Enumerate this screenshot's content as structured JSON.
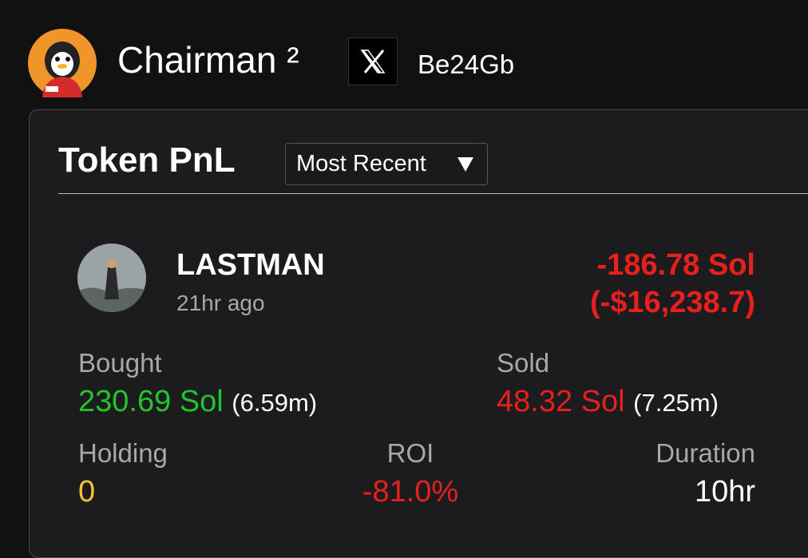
{
  "header": {
    "name": "Chairman ²",
    "handle": "Be24Gb"
  },
  "card": {
    "title": "Token PnL",
    "sort": "Most Recent",
    "token": {
      "name": "LASTMAN",
      "time": "21hr ago",
      "pnl_sol": "-186.78 Sol",
      "pnl_usd": "(-$16,238.7)"
    },
    "bought": {
      "label": "Bought",
      "amount": "230.69 Sol",
      "size": "(6.59m)"
    },
    "sold": {
      "label": "Sold",
      "amount": "48.32 Sol",
      "size": "(7.25m)"
    },
    "holding": {
      "label": "Holding",
      "value": "0"
    },
    "roi": {
      "label": "ROI",
      "value": "-81.0%"
    },
    "duration": {
      "label": "Duration",
      "value": "10hr"
    }
  }
}
